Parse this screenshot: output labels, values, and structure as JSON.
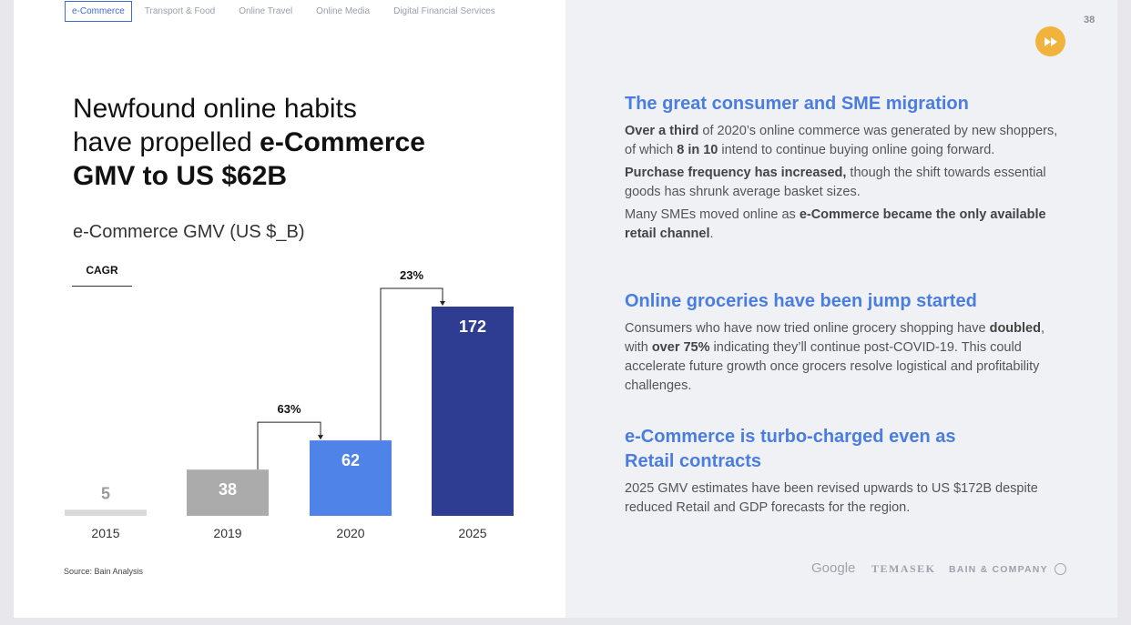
{
  "tabs": [
    "e-Commerce",
    "Transport & Food",
    "Online Travel",
    "Online Media",
    "Digital Financial Services"
  ],
  "page_number": "38",
  "title": {
    "line1": "Newfound online habits",
    "line2_pre": "have propelled ",
    "line2_bold": "e-Commerce",
    "line3": "GMV to US $62B"
  },
  "chart_title": "e-Commerce GMV (US $_B)",
  "cagr_label": "CAGR",
  "chart_data": {
    "type": "bar",
    "title": "e-Commerce GMV (US $_B)",
    "categories": [
      "2015",
      "2019",
      "2020",
      "2025"
    ],
    "values": [
      5,
      38,
      62,
      172
    ],
    "colors": [
      "#d9d9d9",
      "#ababab",
      "#4f83e8",
      "#2e3d91"
    ],
    "label_colors": [
      "#9a9a9a",
      "#ffffff",
      "#ffffff",
      "#ffffff"
    ],
    "ylim": [
      0,
      172
    ],
    "cagr_annotations": [
      {
        "from": "2019",
        "to": "2020",
        "label": "63%"
      },
      {
        "from": "2020",
        "to": "2025",
        "label": "23%"
      }
    ],
    "legend": "none",
    "grid": false
  },
  "source": "Source: Bain Analysis",
  "sections": [
    {
      "heading": "The great consumer and SME migration",
      "p1": {
        "b1": "Over a third",
        "t1": " of 2020’s online commerce was generated by new shoppers, of which ",
        "b2": "8 in 10",
        "t2": " intend to continue buying online going forward."
      },
      "p2": {
        "b1": "Purchase frequency has increased,",
        "t1": " though the shift towards essential goods has shrunk average basket sizes."
      },
      "p3": {
        "t1": "Many SMEs moved online as ",
        "b1": "e-Commerce became the only available retail channel",
        "t2": "."
      }
    },
    {
      "heading": "Online groceries have been jump started",
      "p1": {
        "t1": "Consumers who have now tried online grocery shopping have ",
        "b1": "doubled",
        "t2": ", with ",
        "b2": "over 75%",
        "t3": " indicating they’ll continue post-COVID-19. This could accelerate future growth once grocers resolve logistical and profitability challenges."
      }
    },
    {
      "heading_l1": "e-Commerce is turbo-charged even as",
      "heading_l2": "Retail contracts",
      "p1": "2025 GMV estimates have been revised upwards to US $172B despite reduced Retail and GDP forecasts for the region."
    }
  ],
  "logos": {
    "google": "Google",
    "temasek": "TEMASEK",
    "bain": "BAIN & COMPANY"
  }
}
